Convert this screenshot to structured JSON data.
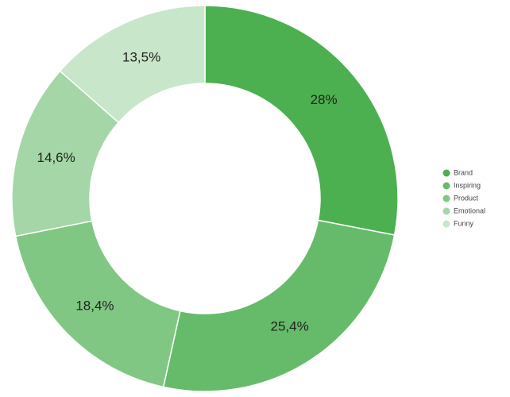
{
  "chart_data": {
    "type": "donut",
    "categories": [
      "Brand",
      "Inspiring",
      "Product",
      "Emotional",
      "Funny"
    ],
    "values": [
      28,
      25.4,
      18.4,
      14.6,
      13.5
    ],
    "value_labels": [
      "28%",
      "25,4%",
      "18,4%",
      "14,6%",
      "13,5%"
    ],
    "colors": [
      "#4caf50",
      "#66bb6a",
      "#81c784",
      "#a5d6a7",
      "#c8e6c9"
    ],
    "legend": "right"
  }
}
